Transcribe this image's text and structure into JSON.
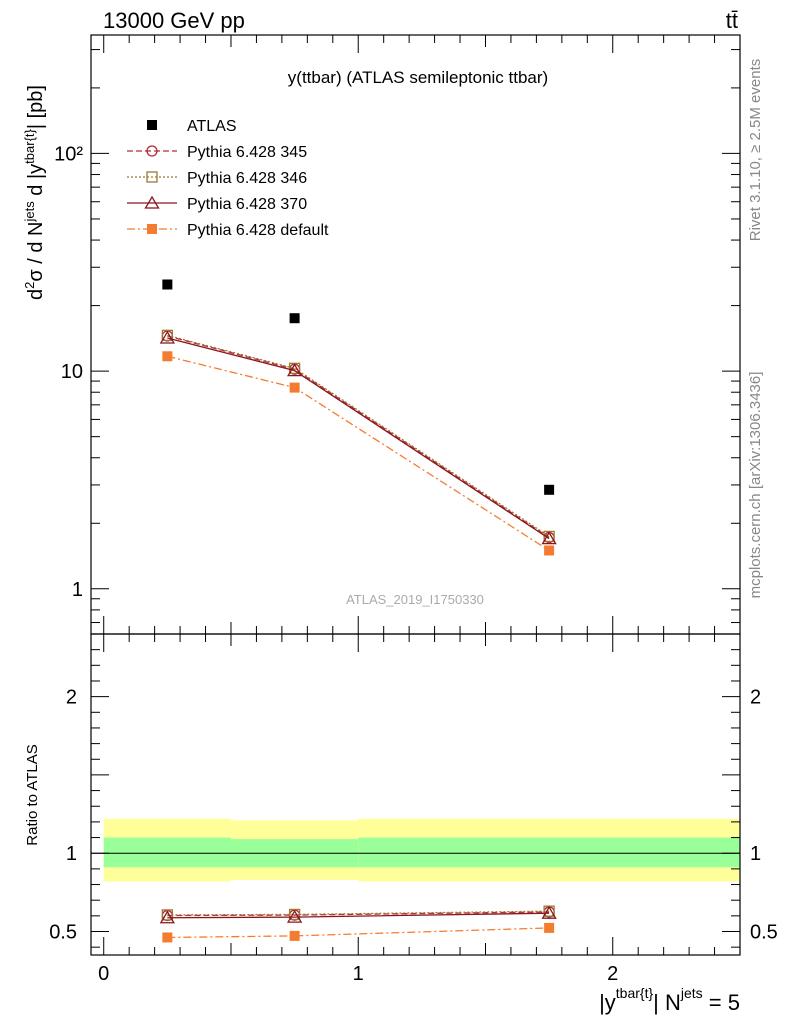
{
  "header": {
    "left": "13000 GeV pp",
    "right": "tt̄"
  },
  "side_texts": {
    "rivet": "Rivet 3.1.10, ≥ 2.5M events",
    "mcplots": "mcplots.cern.ch [arXiv:1306.3436]"
  },
  "chart_data": [
    {
      "type": "line",
      "title": "y(ttbar) (ATLAS semileptonic ttbar)",
      "watermark": "ATLAS_2019_I1750330",
      "ylabel": "d²σ / d N^jets d |y^tbar{t}| [pb]",
      "yscale": "log",
      "ylim": [
        0.62,
        350
      ],
      "xlim": [
        -0.05,
        2.5
      ],
      "legend_placement": "top-left",
      "y_tick_labels": [
        "1",
        "10",
        "10²"
      ],
      "x": [
        0.25,
        0.75,
        1.75
      ],
      "series": [
        {
          "name": "ATLAS",
          "values": [
            25.0,
            17.5,
            2.85
          ],
          "color": "#000000",
          "marker": "square"
        },
        {
          "name": "Pythia 6.428 345",
          "values": [
            14.5,
            10.2,
            1.72
          ],
          "color": "#b22a3a",
          "marker": "circle-open",
          "line": "dashed"
        },
        {
          "name": "Pythia 6.428 346",
          "values": [
            14.6,
            10.3,
            1.74
          ],
          "color": "#9b7a30",
          "marker": "square-open",
          "line": "dotted"
        },
        {
          "name": "Pythia 6.428 370",
          "values": [
            14.2,
            10.05,
            1.7
          ],
          "color": "#8b1520",
          "marker": "triangle-open",
          "line": "solid"
        },
        {
          "name": "Pythia 6.428 default",
          "values": [
            11.7,
            8.4,
            1.5
          ],
          "color": "#f47c30",
          "marker": "square",
          "line": "dashdot"
        }
      ]
    },
    {
      "type": "line",
      "ylabel": "Ratio to ATLAS",
      "xlabel": "|y^tbar{t}| N^jets = 5",
      "ylim": [
        0.35,
        2.4
      ],
      "xlim": [
        -0.05,
        2.5
      ],
      "x_tick_labels": [
        "0",
        "1",
        "2"
      ],
      "y_tick_labels": [
        "0.5",
        "1",
        "2"
      ],
      "bands": {
        "bins": [
          [
            0,
            0.5
          ],
          [
            0.5,
            1.0
          ],
          [
            1.0,
            2.5
          ]
        ],
        "yellow": [
          [
            0.82,
            1.22
          ],
          [
            0.83,
            1.21
          ],
          [
            0.82,
            1.22
          ]
        ],
        "green": [
          [
            0.91,
            1.1
          ],
          [
            0.91,
            1.09
          ],
          [
            0.91,
            1.1
          ]
        ],
        "colors": {
          "yellow": "#ffff99",
          "green": "#99ff99"
        }
      },
      "x": [
        0.25,
        0.75,
        1.75
      ],
      "series": [
        {
          "name": "Pythia 6.428 345",
          "values": [
            0.602,
            0.605,
            0.625
          ],
          "color": "#b22a3a",
          "marker": "circle-open",
          "line": "dashed"
        },
        {
          "name": "Pythia 6.428 346",
          "values": [
            0.606,
            0.609,
            0.63
          ],
          "color": "#9b7a30",
          "marker": "square-open",
          "line": "dotted"
        },
        {
          "name": "Pythia 6.428 370",
          "values": [
            0.588,
            0.592,
            0.617
          ],
          "color": "#8b1520",
          "marker": "triangle-open",
          "line": "solid"
        },
        {
          "name": "Pythia 6.428 default",
          "values": [
            0.462,
            0.472,
            0.523
          ],
          "color": "#f47c30",
          "marker": "square",
          "line": "dashdot"
        }
      ]
    }
  ]
}
